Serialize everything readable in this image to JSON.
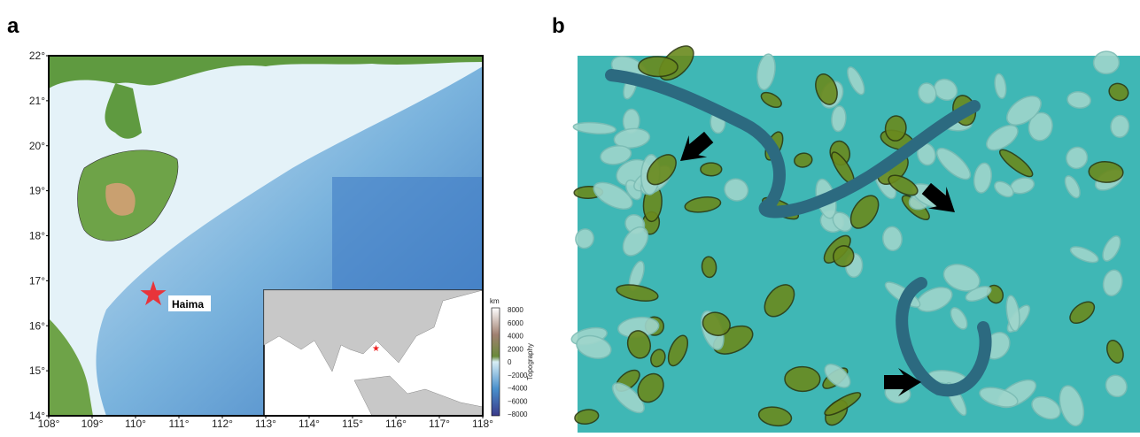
{
  "panel_a": {
    "label": "a",
    "lat_labels": [
      "22°",
      "21°",
      "20°",
      "19°",
      "18°",
      "17°",
      "16°",
      "15°",
      "14°"
    ],
    "lon_labels": [
      "108°",
      "109°",
      "110°",
      "111°",
      "112°",
      "113°",
      "114°",
      "115°",
      "116°",
      "117°",
      "118°"
    ],
    "site": "Haima",
    "colorbar": {
      "unit": "km",
      "title": "Topography",
      "ticks": [
        "8000",
        "6000",
        "4000",
        "2000",
        "0",
        "−2000",
        "−4000",
        "−6000",
        "−8000"
      ]
    }
  },
  "panel_b": {
    "label": "b"
  }
}
